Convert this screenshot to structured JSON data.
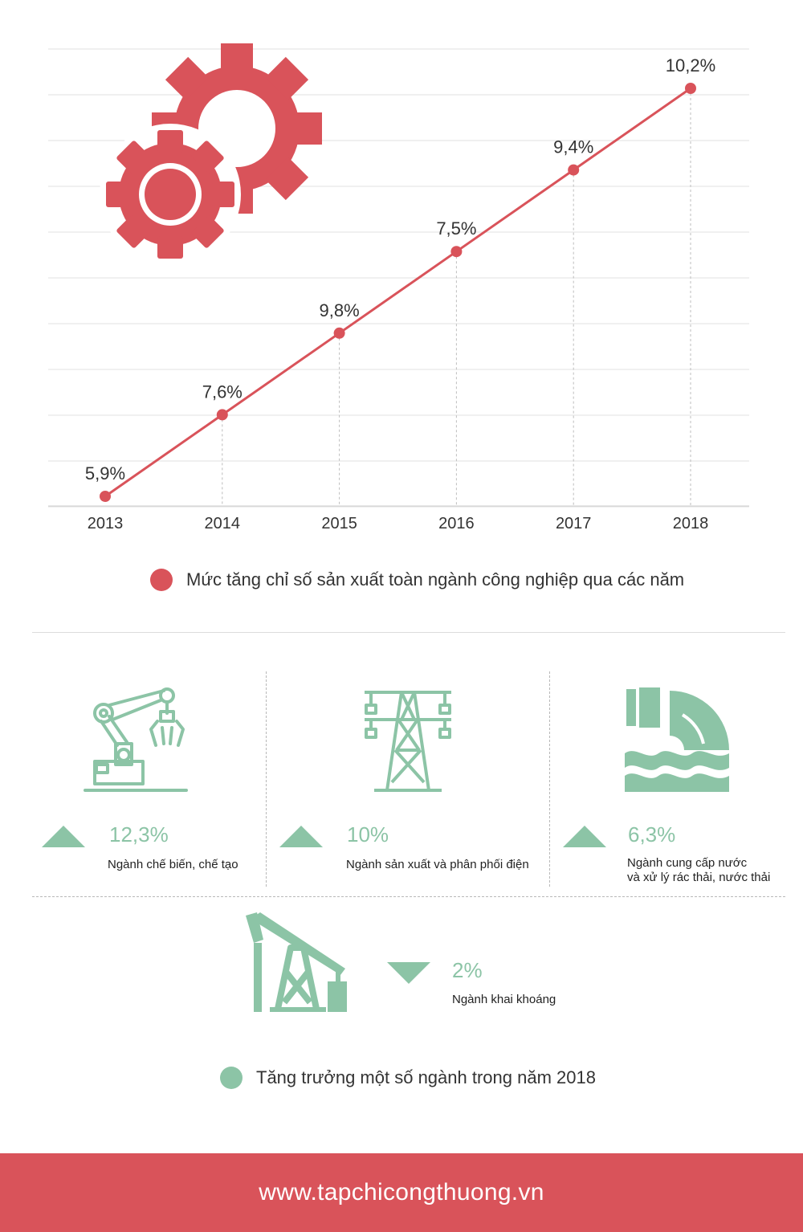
{
  "chart_data": {
    "type": "line",
    "categories": [
      "2013",
      "2014",
      "2015",
      "2016",
      "2017",
      "2018"
    ],
    "series": [
      {
        "name": "Mức tăng chỉ số sản xuất toàn ngành công nghiệp qua các năm",
        "values": [
          5.9,
          7.6,
          9.8,
          7.5,
          9.4,
          10.2
        ],
        "data_labels": [
          "5,9%",
          "7,6%",
          "9,8%",
          "7,5%",
          "9,4%",
          "10,2%"
        ]
      }
    ],
    "grid": "horizontal",
    "legend_placement": "bottom",
    "color": "#d9535a"
  },
  "legend": {
    "chart_label": "Mức tăng chỉ số sản xuất toàn ngành công nghiệp qua các năm",
    "chart_color": "#d9535a",
    "industries_label": "Tăng trưởng một số ngành trong năm 2018",
    "industries_color": "#8cc4a6"
  },
  "industries": [
    {
      "icon": "robot-arm-icon",
      "trend": "up",
      "value": "12,3%",
      "label": "Ngành chế biến, chế tạo"
    },
    {
      "icon": "power-tower-icon",
      "trend": "up",
      "value": "10%",
      "label": "Ngành sản xuất và phân phối điện"
    },
    {
      "icon": "water-pipe-icon",
      "trend": "up",
      "value": "6,3%",
      "label_line1": "Ngành cung cấp nước",
      "label_line2": "và xử lý rác thải, nước thải"
    },
    {
      "icon": "oil-pump-icon",
      "trend": "down",
      "value": "2%",
      "label": "Ngành khai khoáng"
    }
  ],
  "decor": {
    "chart_icon": "gears-icon"
  },
  "footer": {
    "site": "www.tapchicongthuong.vn",
    "color": "#d9535a"
  }
}
